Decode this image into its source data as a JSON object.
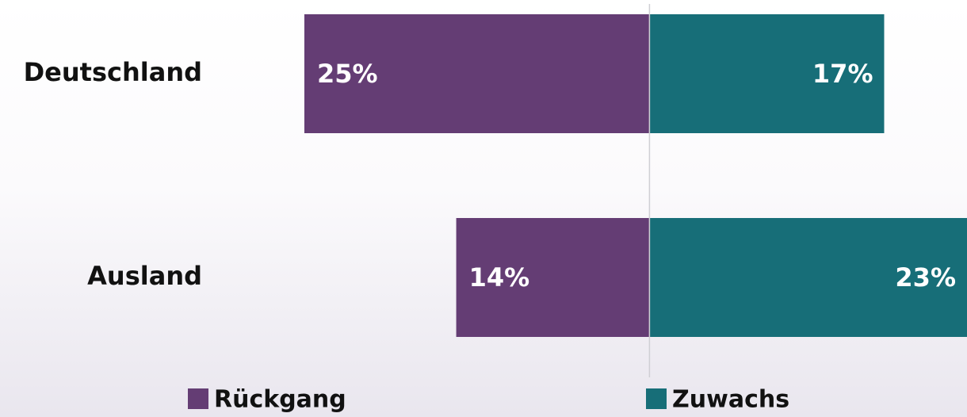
{
  "chart_data": {
    "type": "diverging_bar",
    "categories": [
      "Deutschland",
      "Ausland"
    ],
    "series": [
      {
        "name": "Rückgang",
        "color": "#643d74",
        "values": [
          25,
          14
        ],
        "value_labels": [
          "25%",
          "14%"
        ]
      },
      {
        "name": "Zuwachs",
        "color": "#176e78",
        "values": [
          17,
          23
        ],
        "value_labels": [
          "17%",
          "23%"
        ]
      }
    ],
    "xlim": [
      -25,
      23
    ]
  }
}
